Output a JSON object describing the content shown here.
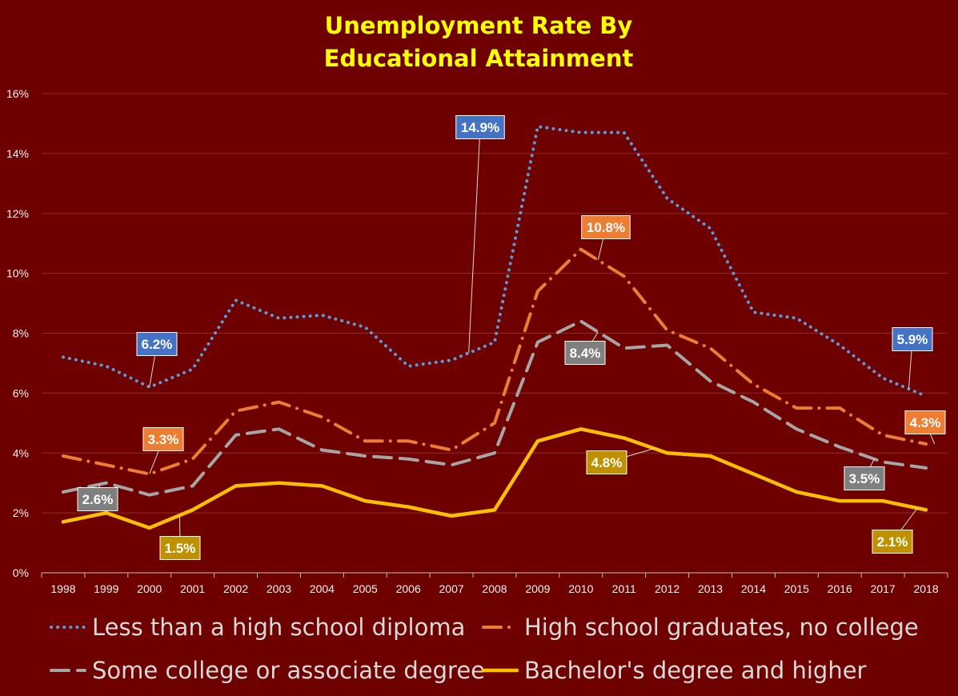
{
  "chart_data": {
    "type": "line",
    "title": [
      "Unemployment Rate By",
      "Educational Attainment"
    ],
    "xlabel": "",
    "ylabel": "",
    "categories": [
      "1998",
      "1999",
      "2000",
      "2001",
      "2002",
      "2003",
      "2004",
      "2005",
      "2006",
      "2007",
      "2008",
      "2009",
      "2010",
      "2011",
      "2012",
      "2013",
      "2014",
      "2015",
      "2016",
      "2017",
      "2018"
    ],
    "yticks": [
      "0%",
      "2%",
      "4%",
      "6%",
      "8%",
      "10%",
      "12%",
      "14%",
      "16%"
    ],
    "ylim": [
      0,
      16
    ],
    "grid": true,
    "legend_position": "bottom",
    "series": [
      {
        "name": "Less than a high school diploma",
        "color": "#5b9bd5",
        "style": "dotted",
        "values": [
          7.2,
          6.9,
          6.2,
          6.8,
          9.1,
          8.5,
          8.6,
          8.2,
          6.9,
          7.1,
          7.7,
          14.9,
          14.7,
          14.7,
          12.5,
          11.5,
          8.7,
          8.5,
          7.6,
          6.5,
          5.9
        ],
        "labels": [
          {
            "index": 2,
            "text": "6.2%"
          },
          {
            "index": 9.4,
            "text": "14.9%"
          },
          {
            "index": 19.6,
            "text": "5.9%"
          }
        ]
      },
      {
        "name": "High school graduates, no college",
        "color": "#ed7d31",
        "style": "dashdot",
        "values": [
          3.9,
          3.6,
          3.3,
          3.8,
          5.4,
          5.7,
          5.2,
          4.4,
          4.4,
          4.1,
          5.0,
          9.4,
          10.8,
          9.9,
          8.1,
          7.5,
          6.3,
          5.5,
          5.5,
          4.6,
          4.3
        ],
        "labels": [
          {
            "index": 2,
            "text": "3.3%"
          },
          {
            "index": 12.4,
            "text": "10.8%"
          },
          {
            "index": 20.2,
            "text": "4.3%"
          }
        ]
      },
      {
        "name": "Some college or associate degree",
        "color": "#a6a6a6",
        "style": "dashed",
        "values": [
          2.7,
          3.0,
          2.6,
          2.9,
          4.6,
          4.8,
          4.1,
          3.9,
          3.8,
          3.6,
          4.0,
          7.7,
          8.4,
          7.5,
          7.6,
          6.4,
          5.7,
          4.8,
          4.2,
          3.7,
          3.5
        ],
        "labels": [
          {
            "index": 0.85,
            "text": "2.6%"
          },
          {
            "index": 12.4,
            "text": "8.4%"
          },
          {
            "index": 18.8,
            "text": "3.5%"
          }
        ]
      },
      {
        "name": "Bachelor's degree and higher",
        "color": "#ffc000",
        "style": "solid",
        "values": [
          1.7,
          2.0,
          1.5,
          2.1,
          2.9,
          3.0,
          2.9,
          2.4,
          2.2,
          1.9,
          2.1,
          4.4,
          4.8,
          4.5,
          4.0,
          3.9,
          3.3,
          2.7,
          2.4,
          2.4,
          2.1
        ],
        "labels": [
          {
            "index": 2.7,
            "text": "1.5%"
          },
          {
            "index": 13.7,
            "text": "4.8%"
          },
          {
            "index": 19.8,
            "text": "2.1%"
          }
        ]
      }
    ],
    "label_box_colors": [
      "#4472c4",
      "#ed7d31",
      "#7f7f7f",
      "#bf9000"
    ]
  }
}
